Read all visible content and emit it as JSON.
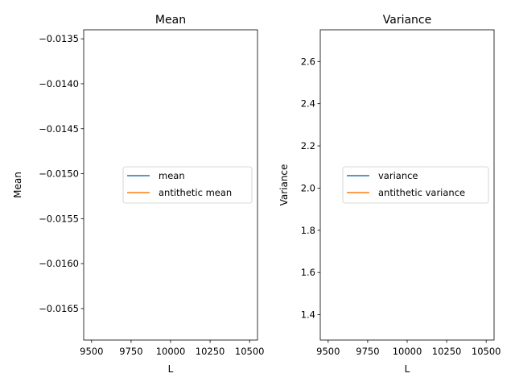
{
  "chart_data": [
    {
      "type": "line",
      "title": "Mean",
      "xlabel": "L",
      "ylabel": "Mean",
      "xlim": [
        9450,
        10550
      ],
      "ylim": [
        -0.01685,
        -0.0134
      ],
      "xticks": [
        9500,
        9750,
        10000,
        10250,
        10500
      ],
      "xtick_labels": [
        "9500",
        "9750",
        "10000",
        "10250",
        "10500"
      ],
      "yticks": [
        -0.0165,
        -0.016,
        -0.0155,
        -0.015,
        -0.0145,
        -0.014,
        -0.0135
      ],
      "ytick_labels": [
        "−0.0165",
        "−0.0160",
        "−0.0155",
        "−0.0150",
        "−0.0145",
        "−0.0140",
        "−0.0135"
      ],
      "grid": false,
      "legend_position": "center-right",
      "series": [
        {
          "name": "mean",
          "color": "#1f77b4",
          "x": [],
          "y": []
        },
        {
          "name": "antithetic mean",
          "color": "#ff7f0e",
          "x": [],
          "y": []
        }
      ]
    },
    {
      "type": "line",
      "title": "Variance",
      "xlabel": "L",
      "ylabel": "Variance",
      "xlim": [
        9450,
        10550
      ],
      "ylim": [
        1.28,
        2.75
      ],
      "xticks": [
        9500,
        9750,
        10000,
        10250,
        10500
      ],
      "xtick_labels": [
        "9500",
        "9750",
        "10000",
        "10250",
        "10500"
      ],
      "yticks": [
        1.4,
        1.6,
        1.8,
        2.0,
        2.2,
        2.4,
        2.6
      ],
      "ytick_labels": [
        "1.4",
        "1.6",
        "1.8",
        "2.0",
        "2.2",
        "2.4",
        "2.6"
      ],
      "grid": false,
      "legend_position": "center-right",
      "series": [
        {
          "name": "variance",
          "color": "#1f77b4",
          "x": [],
          "y": []
        },
        {
          "name": "antithetic variance",
          "color": "#ff7f0e",
          "x": [],
          "y": []
        }
      ]
    }
  ]
}
